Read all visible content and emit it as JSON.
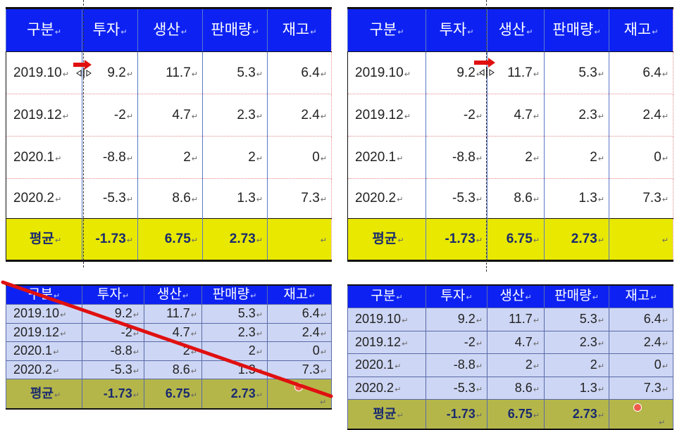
{
  "return_mark": "↵",
  "tables": [
    {
      "headers": [
        "구분",
        "투자",
        "생산",
        "판매량",
        "재고"
      ],
      "rows": [
        [
          "2019.10",
          "9.2",
          "11.7",
          "5.3",
          "6.4"
        ],
        [
          "2019.12",
          "-2",
          "4.7",
          "2.3",
          "2.4"
        ],
        [
          "2020.1",
          "-8.8",
          "2",
          "2",
          "0"
        ],
        [
          "2020.2",
          "-5.3",
          "8.6",
          "1.3",
          "7.3"
        ]
      ],
      "average": [
        "평균",
        "-1.73",
        "6.75",
        "2.73",
        ""
      ]
    },
    {
      "headers": [
        "구분",
        "투자",
        "생산",
        "판매량",
        "재고"
      ],
      "rows": [
        [
          "2019.10",
          "9.2",
          "11.7",
          "5.3",
          "6.4"
        ],
        [
          "2019.12",
          "-2",
          "4.7",
          "2.3",
          "2.4"
        ],
        [
          "2020.1",
          "-8.8",
          "2",
          "2",
          "0"
        ],
        [
          "2020.2",
          "-5.3",
          "8.6",
          "1.3",
          "7.3"
        ]
      ],
      "average": [
        "평균",
        "-1.73",
        "6.75",
        "2.73",
        ""
      ]
    },
    {
      "headers": [
        "구분",
        "투자",
        "생산",
        "판매량",
        "재고"
      ],
      "rows": [
        [
          "2019.10",
          "9.2",
          "11.7",
          "5.3",
          "6.4"
        ],
        [
          "2019.12",
          "-2",
          "4.7",
          "2.3",
          "2.4"
        ],
        [
          "2020.1",
          "-8.8",
          "2",
          "2",
          "0"
        ],
        [
          "2020.2",
          "-5.3",
          "8.6",
          "1.3",
          "7.3"
        ]
      ],
      "average": [
        "평균",
        "-1.73",
        "6.75",
        "2.73",
        ""
      ]
    },
    {
      "headers": [
        "구분",
        "투자",
        "생산",
        "판매량",
        "재고"
      ],
      "rows": [
        [
          "2019.10",
          "9.2",
          "11.7",
          "5.3",
          "6.4"
        ],
        [
          "2019.12",
          "-2",
          "4.7",
          "2.3",
          "2.4"
        ],
        [
          "2020.1",
          "-8.8",
          "2",
          "2",
          "0"
        ],
        [
          "2020.2",
          "-5.3",
          "8.6",
          "1.3",
          "7.3"
        ]
      ],
      "average": [
        "평균",
        "-1.73",
        "6.75",
        "2.73",
        ""
      ]
    }
  ],
  "colors": {
    "header_bg": "#0d22f2",
    "average_bg": "#e8e800",
    "body_bg_bottom": "#cdd6f4",
    "average_bg_bottom": "#b4b64a",
    "strike_line": "#e01010",
    "arrow": "#e01010"
  },
  "icons": [
    "column-resize-cursor-icon",
    "red-arrow-icon",
    "red-dot-icon",
    "strike-through-line"
  ]
}
